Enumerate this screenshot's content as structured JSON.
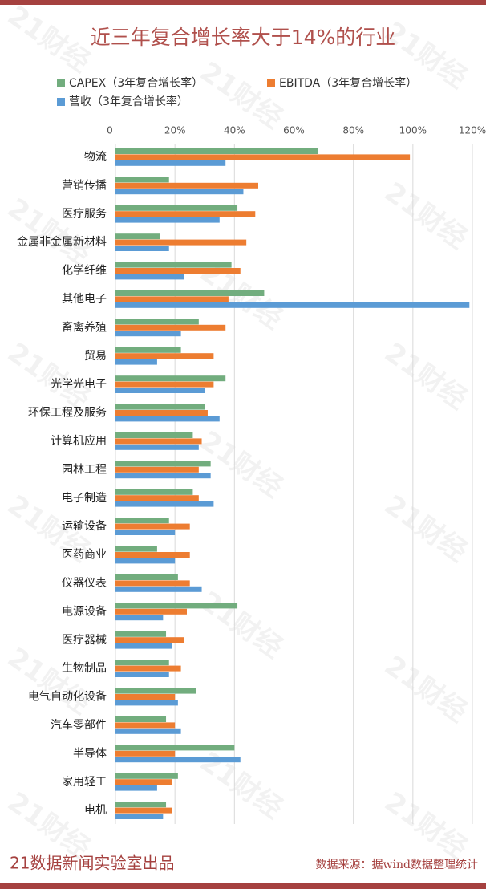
{
  "chart_data": {
    "type": "hbar",
    "title": "近三年复合增长率大于14%的行业",
    "categories": [
      "物流",
      "营销传播",
      "医疗服务",
      "金属非金属新材料",
      "化学纤维",
      "其他电子",
      "畜禽养殖",
      "贸易",
      "光学光电子",
      "环保工程及服务",
      "计算机应用",
      "园林工程",
      "电子制造",
      "运输设备",
      "医药商业",
      "仪器仪表",
      "电源设备",
      "医疗器械",
      "生物制品",
      "电气自动化设备",
      "汽车零部件",
      "半导体",
      "家用轻工",
      "电机"
    ],
    "series": [
      {
        "name": "CAPEX（3年复合增长率）",
        "color": "#72ad7e",
        "values": [
          68,
          18,
          41,
          15,
          39,
          50,
          28,
          22,
          37,
          30,
          26,
          32,
          26,
          18,
          14,
          21,
          41,
          17,
          18,
          27,
          17,
          40,
          21,
          17
        ]
      },
      {
        "name": "EBITDA（3年复合增长率）",
        "color": "#ed7d31",
        "values": [
          99,
          48,
          47,
          44,
          42,
          38,
          37,
          33,
          33,
          31,
          29,
          28,
          28,
          25,
          25,
          25,
          24,
          23,
          22,
          20,
          20,
          20,
          19,
          19
        ]
      },
      {
        "name": "营收（3年复合增长率）",
        "color": "#5b9bd5",
        "values": [
          37,
          43,
          35,
          18,
          23,
          119,
          22,
          14,
          30,
          35,
          28,
          32,
          33,
          20,
          20,
          29,
          16,
          19,
          18,
          21,
          22,
          42,
          14,
          16
        ]
      }
    ],
    "xlim": [
      0,
      120
    ],
    "xticks": [
      0,
      {
        "value": 20,
        "label": "20%"
      },
      {
        "value": 40,
        "label": "40%"
      },
      {
        "value": 60,
        "label": "60%"
      },
      {
        "value": 80,
        "label": "80%"
      },
      {
        "value": 100,
        "label": "100%"
      },
      {
        "value": 120,
        "label": "120%"
      }
    ],
    "grid": true,
    "watermark": "21财经",
    "footer_left": "21数据新闻实验室出品",
    "footer_right": "数据来源：据wind数据整理统计"
  }
}
